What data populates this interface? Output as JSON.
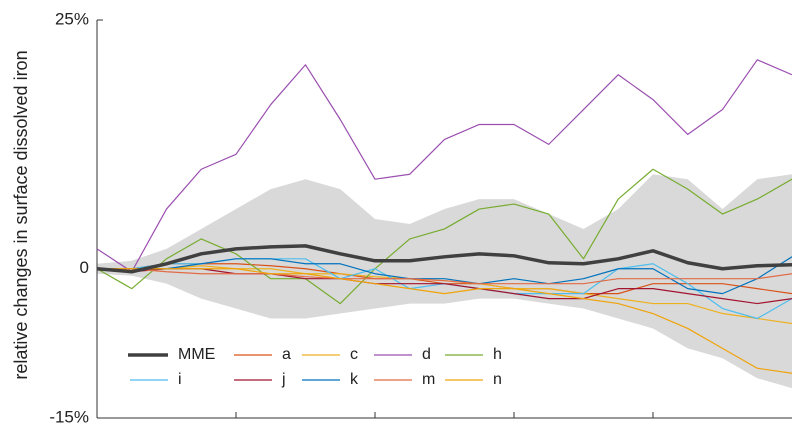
{
  "chart_data": {
    "type": "line",
    "ylabel": "relative changes in surface dissolved iron",
    "x": [
      0,
      5,
      10,
      15,
      20,
      25,
      30,
      35,
      40,
      45,
      50,
      55,
      60,
      65,
      70,
      75,
      80,
      85,
      90,
      95,
      100
    ],
    "xlim": [
      0,
      100
    ],
    "xticks": [
      20,
      40,
      60,
      80
    ],
    "ylim": [
      -15,
      25
    ],
    "yticks": [
      {
        "value": 25,
        "label": "25%"
      },
      0,
      {
        "value": -15,
        "label": "-15%"
      }
    ],
    "band": {
      "color": "#d9d9d9",
      "upper": [
        0.5,
        0.8,
        2,
        4,
        6,
        8,
        9,
        8,
        5,
        4.5,
        6,
        7,
        7,
        5.5,
        4,
        6,
        9.5,
        9,
        6,
        9,
        9.5
      ],
      "lower": [
        -0.5,
        -0.7,
        -1.5,
        -3,
        -4,
        -5,
        -5,
        -4.5,
        -4,
        -3.5,
        -3.5,
        -3,
        -3,
        -3.5,
        -4,
        -5,
        -6,
        -8,
        -9,
        -11,
        -12
      ]
    },
    "series": [
      {
        "name": "MME",
        "color": "#404040",
        "values": [
          0,
          -0.3,
          0.5,
          1.5,
          2,
          2.2,
          2.3,
          1.5,
          0.8,
          0.8,
          1.2,
          1.5,
          1.3,
          0.6,
          0.5,
          1.0,
          1.8,
          0.6,
          0,
          0.3,
          0.4
        ]
      },
      {
        "name": "a",
        "color": "#d95319",
        "values": [
          0,
          0,
          0.5,
          0.5,
          0.5,
          0.3,
          0,
          -0.5,
          -1,
          -1,
          -1.5,
          -1.5,
          -2,
          -2,
          -2.5,
          -2.5,
          -1.5,
          -1.5,
          -1.5,
          -2,
          -2.5
        ]
      },
      {
        "name": "c",
        "color": "#edb120",
        "values": [
          0,
          0,
          0,
          0.3,
          0,
          0,
          -0.5,
          -0.5,
          -0.8,
          -1,
          -1.2,
          -1.5,
          -2,
          -2,
          -2.5,
          -3,
          -3.5,
          -3.5,
          -4.5,
          -5,
          -5.5
        ]
      },
      {
        "name": "d",
        "color": "#9b4fb0",
        "values": [
          2,
          -0.3,
          6,
          10,
          11.5,
          16.5,
          20.5,
          15,
          9,
          9.5,
          13,
          14.5,
          14.5,
          12.5,
          16,
          19.5,
          17,
          13.5,
          16,
          21,
          19.5
        ]
      },
      {
        "name": "h",
        "color": "#77ac30",
        "values": [
          0,
          -2,
          1,
          3,
          1.5,
          -1,
          -1,
          -3.5,
          0,
          3,
          4,
          6,
          6.5,
          5.5,
          1,
          7,
          10,
          8,
          5.5,
          7,
          9
        ]
      },
      {
        "name": "i",
        "color": "#4dbeee",
        "values": [
          0,
          0,
          0.5,
          0.5,
          1,
          1,
          1,
          -1,
          0,
          -2,
          -1.5,
          -2,
          -2.5,
          -2.5,
          -2.5,
          0,
          0.5,
          -1.5,
          -4,
          -5,
          -3
        ]
      },
      {
        "name": "j",
        "color": "#a2142f",
        "values": [
          0,
          -0.3,
          0,
          0,
          -0.5,
          -0.5,
          -1,
          -1,
          -1.5,
          -1.5,
          -1.5,
          -2,
          -2.5,
          -3,
          -3,
          -2,
          -2,
          -2.5,
          -3,
          -3.5,
          -3
        ]
      },
      {
        "name": "k",
        "color": "#0072bd",
        "values": [
          0,
          0,
          0,
          0.5,
          1,
          1,
          0.5,
          0.5,
          -0.5,
          -1,
          -1,
          -1.5,
          -1,
          -1.5,
          -1,
          0,
          0,
          -2,
          -2.5,
          -1,
          1.2
        ]
      },
      {
        "name": "m",
        "color": "#e26b45",
        "values": [
          0,
          0,
          -0.3,
          -0.5,
          -0.5,
          -0.5,
          -0.8,
          -1,
          -1,
          -1,
          -1.2,
          -1.5,
          -1.5,
          -1.5,
          -1.5,
          -1,
          -1,
          -1,
          -1,
          -1,
          -0.5
        ]
      },
      {
        "name": "n",
        "color": "#f0a30a",
        "values": [
          0,
          0,
          0,
          0,
          0,
          -0.5,
          -0.5,
          -1,
          -1.5,
          -2,
          -2.5,
          -2,
          -2,
          -2.5,
          -3,
          -3.5,
          -4.5,
          -6,
          -8,
          -10,
          -10.5
        ]
      }
    ]
  }
}
